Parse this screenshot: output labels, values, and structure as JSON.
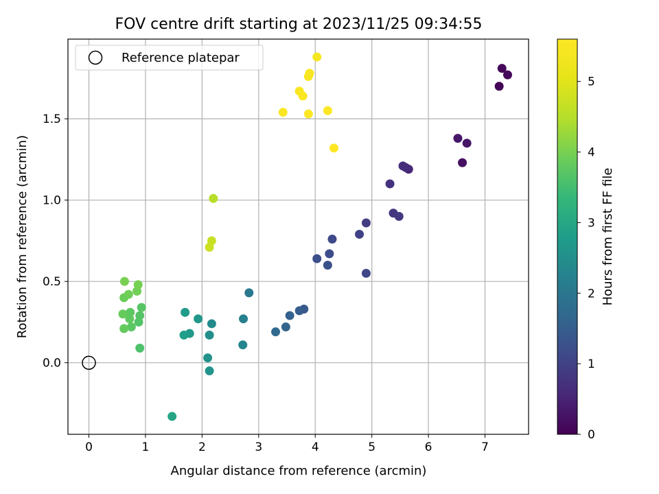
{
  "chart_data": {
    "type": "scatter",
    "title": "FOV centre drift starting at 2023/11/25 09:34:55",
    "xlabel": "Angular distance from reference (arcmin)",
    "ylabel": "Rotation from reference (arcmin)",
    "xlim": [
      -0.37,
      7.77
    ],
    "ylim": [
      -0.44,
      1.99
    ],
    "xticks": [
      0,
      1,
      2,
      3,
      4,
      5,
      6,
      7
    ],
    "xtick_labels": [
      "0",
      "1",
      "2",
      "3",
      "4",
      "5",
      "6",
      "7"
    ],
    "yticks": [
      0.0,
      0.5,
      1.0,
      1.5
    ],
    "ytick_labels": [
      "0.0",
      "0.5",
      "1.0",
      "1.5"
    ],
    "grid": true,
    "legend": {
      "position": "top-left",
      "entries": [
        "Reference platepar"
      ]
    },
    "reference_point": {
      "x": 0,
      "y": 0,
      "label": "Reference platepar"
    },
    "colorbar": {
      "label": "Hours from first FF file",
      "colormap": "viridis",
      "range": [
        0,
        5.6
      ],
      "ticks": [
        0,
        1,
        2,
        3,
        4,
        5
      ],
      "tick_labels": [
        "0",
        "1",
        "2",
        "3",
        "4",
        "5"
      ]
    },
    "points": [
      {
        "x": 7.25,
        "y": 1.7,
        "c": 0.05
      },
      {
        "x": 7.3,
        "y": 1.81,
        "c": 0.08
      },
      {
        "x": 7.4,
        "y": 1.77,
        "c": 0.12
      },
      {
        "x": 6.6,
        "y": 1.23,
        "c": 0.22
      },
      {
        "x": 6.68,
        "y": 1.35,
        "c": 0.28
      },
      {
        "x": 6.52,
        "y": 1.38,
        "c": 0.32
      },
      {
        "x": 5.65,
        "y": 1.19,
        "c": 0.55
      },
      {
        "x": 5.6,
        "y": 1.2,
        "c": 0.6
      },
      {
        "x": 5.55,
        "y": 1.21,
        "c": 0.65
      },
      {
        "x": 5.32,
        "y": 1.1,
        "c": 0.72
      },
      {
        "x": 5.38,
        "y": 0.92,
        "c": 0.8
      },
      {
        "x": 5.48,
        "y": 0.9,
        "c": 0.85
      },
      {
        "x": 4.9,
        "y": 0.86,
        "c": 0.92
      },
      {
        "x": 4.78,
        "y": 0.79,
        "c": 0.98
      },
      {
        "x": 4.9,
        "y": 0.55,
        "c": 1.05
      },
      {
        "x": 4.3,
        "y": 0.76,
        "c": 1.12
      },
      {
        "x": 4.25,
        "y": 0.67,
        "c": 1.18
      },
      {
        "x": 4.03,
        "y": 0.64,
        "c": 1.22
      },
      {
        "x": 4.22,
        "y": 0.6,
        "c": 1.28
      },
      {
        "x": 3.8,
        "y": 0.33,
        "c": 1.4
      },
      {
        "x": 3.72,
        "y": 0.32,
        "c": 1.48
      },
      {
        "x": 3.55,
        "y": 0.29,
        "c": 1.55
      },
      {
        "x": 3.48,
        "y": 0.22,
        "c": 1.62
      },
      {
        "x": 3.3,
        "y": 0.19,
        "c": 1.7
      },
      {
        "x": 2.83,
        "y": 0.43,
        "c": 2.05
      },
      {
        "x": 2.73,
        "y": 0.27,
        "c": 2.2
      },
      {
        "x": 2.72,
        "y": 0.11,
        "c": 2.3
      },
      {
        "x": 2.17,
        "y": 0.24,
        "c": 2.42
      },
      {
        "x": 2.13,
        "y": 0.17,
        "c": 2.5
      },
      {
        "x": 2.1,
        "y": 0.03,
        "c": 2.55
      },
      {
        "x": 2.13,
        "y": -0.05,
        "c": 2.6
      },
      {
        "x": 1.93,
        "y": 0.27,
        "c": 2.65
      },
      {
        "x": 1.78,
        "y": 0.18,
        "c": 2.7
      },
      {
        "x": 1.7,
        "y": 0.31,
        "c": 2.75
      },
      {
        "x": 1.68,
        "y": 0.17,
        "c": 2.8
      },
      {
        "x": 1.47,
        "y": -0.33,
        "c": 2.95
      },
      {
        "x": 0.9,
        "y": 0.09,
        "c": 3.6
      },
      {
        "x": 0.88,
        "y": 0.25,
        "c": 3.65
      },
      {
        "x": 0.9,
        "y": 0.29,
        "c": 3.68
      },
      {
        "x": 0.93,
        "y": 0.34,
        "c": 3.7
      },
      {
        "x": 0.75,
        "y": 0.22,
        "c": 3.72
      },
      {
        "x": 0.73,
        "y": 0.31,
        "c": 3.75
      },
      {
        "x": 0.72,
        "y": 0.27,
        "c": 3.78
      },
      {
        "x": 0.62,
        "y": 0.21,
        "c": 3.82
      },
      {
        "x": 0.6,
        "y": 0.3,
        "c": 3.85
      },
      {
        "x": 0.62,
        "y": 0.4,
        "c": 3.88
      },
      {
        "x": 0.7,
        "y": 0.42,
        "c": 3.92
      },
      {
        "x": 0.85,
        "y": 0.44,
        "c": 3.95
      },
      {
        "x": 0.87,
        "y": 0.48,
        "c": 3.98
      },
      {
        "x": 0.63,
        "y": 0.5,
        "c": 4.0
      },
      {
        "x": 2.2,
        "y": 1.01,
        "c": 4.5
      },
      {
        "x": 2.17,
        "y": 0.75,
        "c": 4.7
      },
      {
        "x": 2.13,
        "y": 0.71,
        "c": 4.75
      },
      {
        "x": 4.03,
        "y": 1.88,
        "c": 5.4
      },
      {
        "x": 3.9,
        "y": 1.78,
        "c": 5.45
      },
      {
        "x": 3.88,
        "y": 1.76,
        "c": 5.48
      },
      {
        "x": 3.72,
        "y": 1.67,
        "c": 5.5
      },
      {
        "x": 3.78,
        "y": 1.64,
        "c": 5.52
      },
      {
        "x": 3.43,
        "y": 1.54,
        "c": 5.54
      },
      {
        "x": 3.88,
        "y": 1.53,
        "c": 5.55
      },
      {
        "x": 4.22,
        "y": 1.55,
        "c": 5.57
      },
      {
        "x": 4.33,
        "y": 1.32,
        "c": 5.6
      }
    ]
  }
}
